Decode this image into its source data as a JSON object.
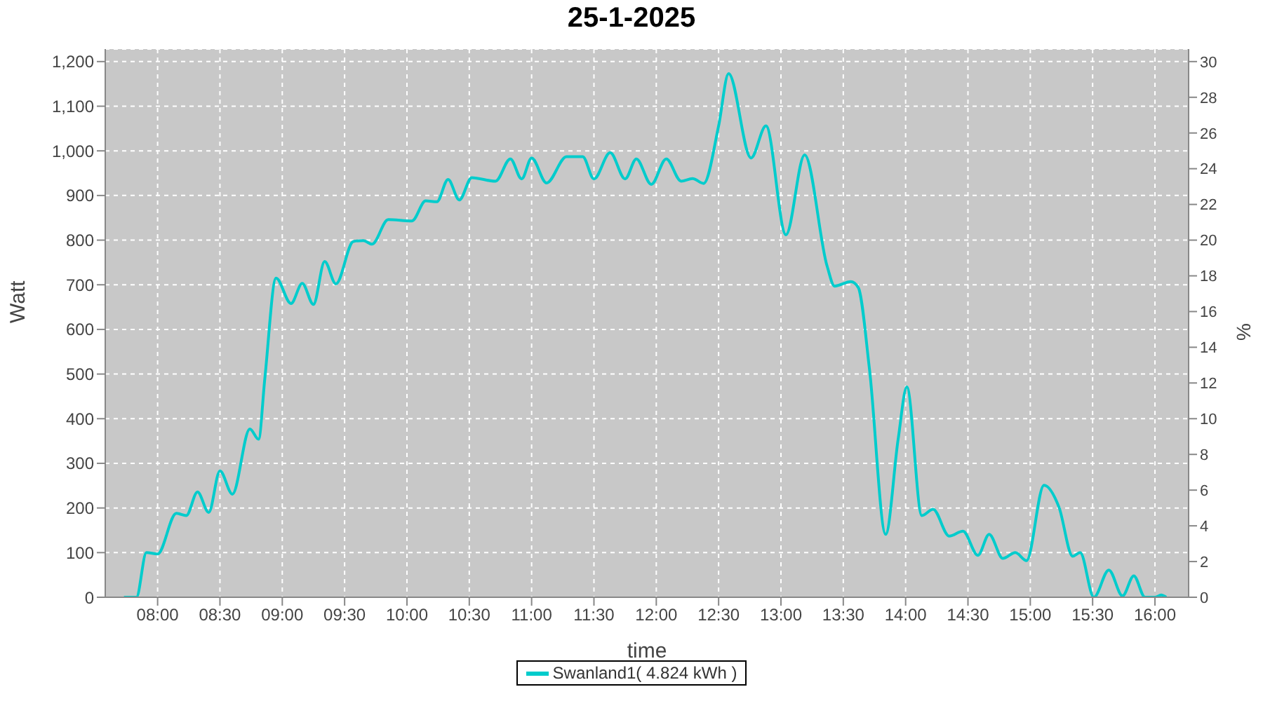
{
  "chart_data": {
    "type": "line",
    "title": "25-1-2025",
    "xlabel": "time",
    "ylabel": "Watt",
    "y2label": "%",
    "xlim": [
      7.58,
      16.27
    ],
    "xticks": [
      {
        "value": 8,
        "label": "08:00"
      },
      {
        "value": 8.5,
        "label": "08:30"
      },
      {
        "value": 9,
        "label": "09:00"
      },
      {
        "value": 9.5,
        "label": "09:30"
      },
      {
        "value": 10,
        "label": "10:00"
      },
      {
        "value": 10.5,
        "label": "10:30"
      },
      {
        "value": 11,
        "label": "11:00"
      },
      {
        "value": 11.5,
        "label": "11:30"
      },
      {
        "value": 12,
        "label": "12:00"
      },
      {
        "value": 12.5,
        "label": "12:30"
      },
      {
        "value": 13,
        "label": "13:00"
      },
      {
        "value": 13.5,
        "label": "13:30"
      },
      {
        "value": 14,
        "label": "14:00"
      },
      {
        "value": 14.5,
        "label": "14:30"
      },
      {
        "value": 15,
        "label": "15:00"
      },
      {
        "value": 15.5,
        "label": "15:30"
      },
      {
        "value": 16,
        "label": "16:00"
      }
    ],
    "ylim": [
      0,
      1228
    ],
    "yticks": [
      0,
      100,
      200,
      300,
      400,
      500,
      600,
      700,
      800,
      900,
      {
        "value": 1000,
        "label": "1,000"
      },
      {
        "value": 1100,
        "label": "1,100"
      },
      {
        "value": 1200,
        "label": "1,200"
      }
    ],
    "y2lim": [
      0,
      30.7
    ],
    "y2ticks": [
      0,
      2,
      4,
      6,
      8,
      10,
      12,
      14,
      16,
      18,
      20,
      22,
      24,
      26,
      28,
      30
    ],
    "grid": true,
    "legend": "bottom",
    "marker": "none",
    "line_style": "solid",
    "series": [
      {
        "name": "Swanland1( 4.824 kWh )",
        "color": "#00cccc",
        "x": [
          7.73,
          7.83,
          7.91,
          8.0,
          8.15,
          8.23,
          8.32,
          8.41,
          8.5,
          8.6,
          8.74,
          8.81,
          8.86,
          8.95,
          9.07,
          9.16,
          9.25,
          9.34,
          9.43,
          9.57,
          9.65,
          9.72,
          9.85,
          10.04,
          10.15,
          10.24,
          10.33,
          10.42,
          10.52,
          10.71,
          10.83,
          10.92,
          11.0,
          11.12,
          11.28,
          11.41,
          11.5,
          11.63,
          11.75,
          11.84,
          11.96,
          12.08,
          12.2,
          12.29,
          12.38,
          12.5,
          12.58,
          12.76,
          12.88,
          13.04,
          13.19,
          13.37,
          13.43,
          13.56,
          13.62,
          13.71,
          13.84,
          13.94,
          14.01,
          14.13,
          14.22,
          14.35,
          14.46,
          14.58,
          14.67,
          14.78,
          14.88,
          14.97,
          15.11,
          15.23,
          15.34,
          15.4,
          15.51,
          15.63,
          15.74,
          15.83,
          15.92,
          16.0,
          16.05,
          16.09
        ],
        "values": [
          0,
          0,
          100,
          97,
          188,
          183,
          236,
          190,
          283,
          231,
          377,
          354,
          490,
          715,
          658,
          703,
          656,
          752,
          702,
          797,
          799,
          791,
          846,
          843,
          888,
          886,
          936,
          890,
          940,
          932,
          982,
          937,
          984,
          928,
          987,
          987,
          937,
          996,
          937,
          982,
          925,
          982,
          932,
          938,
          927,
          1056,
          1173,
          984,
          1056,
          812,
          991,
          742,
          697,
          707,
          694,
          511,
          141,
          354,
          471,
          183,
          197,
          137,
          148,
          94,
          141,
          87,
          100,
          82,
          251,
          202,
          92,
          100,
          0,
          61,
          3,
          48,
          0,
          0,
          5,
          0
        ]
      }
    ]
  }
}
